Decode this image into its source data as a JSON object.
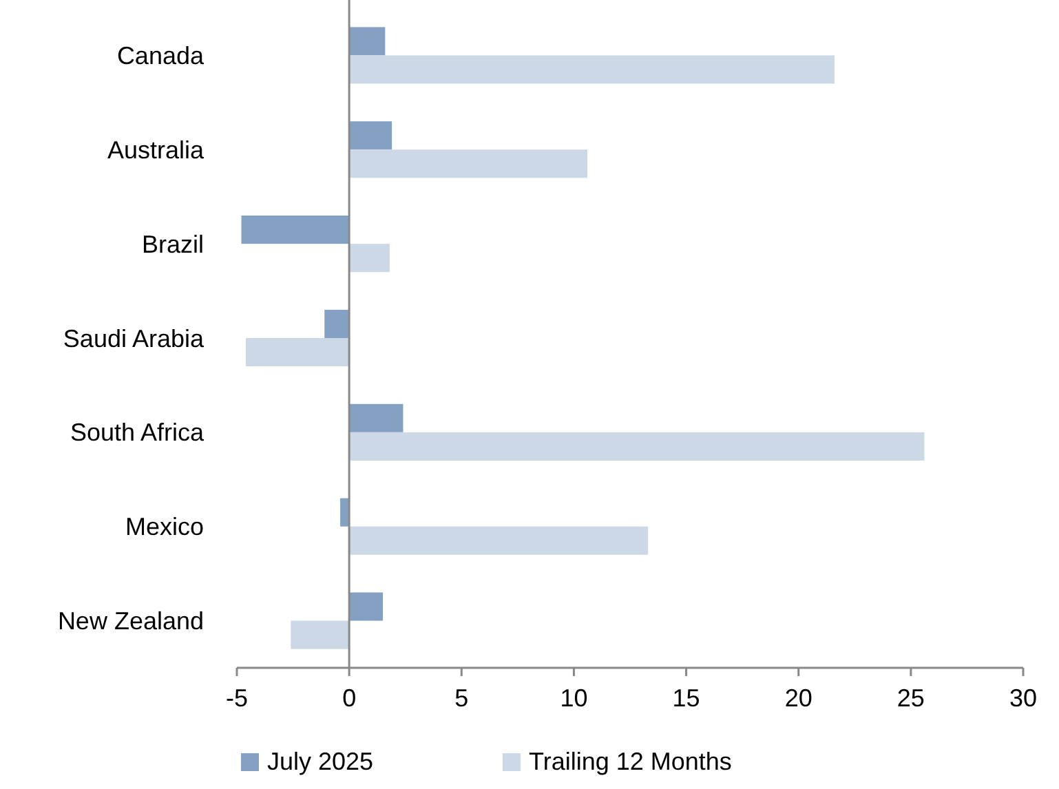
{
  "chart_data": {
    "type": "bar",
    "orientation": "horizontal",
    "categories": [
      "Canada",
      "Australia",
      "Brazil",
      "Saudi Arabia",
      "South Africa",
      "Mexico",
      "New Zealand"
    ],
    "series": [
      {
        "name": "July 2025",
        "color": "#84a1c4",
        "values": [
          1.6,
          1.9,
          -4.8,
          -1.1,
          2.4,
          -0.4,
          1.5
        ]
      },
      {
        "name": "Trailing 12 Months",
        "color": "#ccd8e6",
        "values": [
          21.6,
          10.6,
          1.8,
          -4.6,
          25.6,
          13.3,
          -2.6
        ]
      }
    ],
    "xlim": [
      -5,
      30
    ],
    "xticks": [
      -5,
      0,
      5,
      10,
      15,
      20,
      25,
      30
    ],
    "legend": "bottom"
  }
}
